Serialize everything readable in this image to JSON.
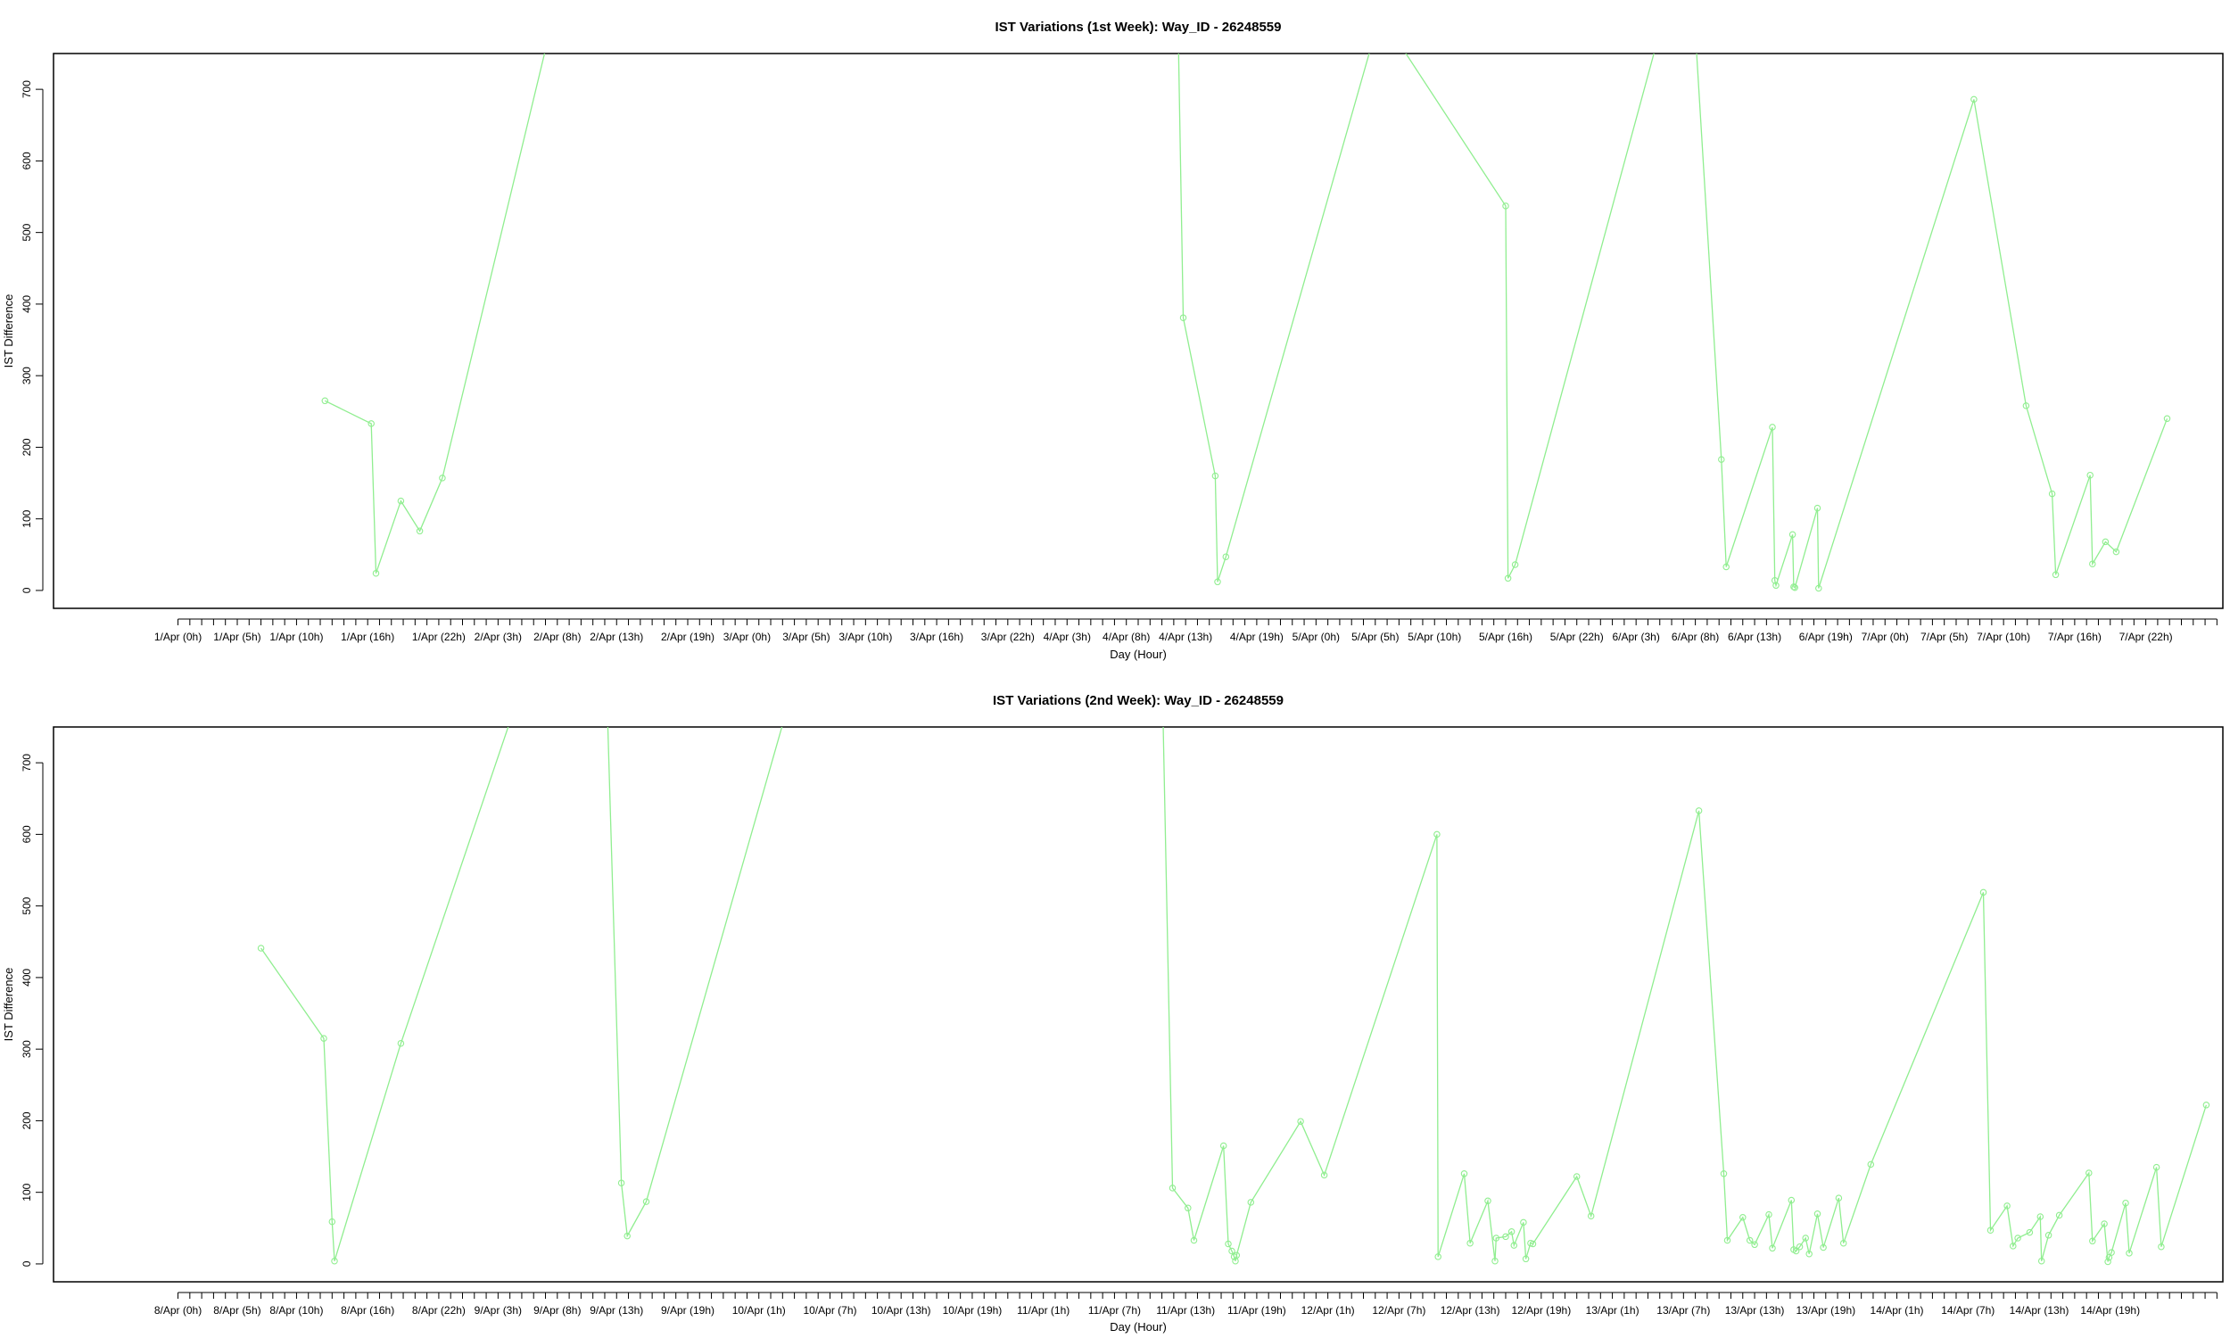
{
  "colors": {
    "series": "#90ee90",
    "frame": "#000000",
    "background": "#ffffff"
  },
  "chart_data": [
    {
      "type": "line",
      "title": "IST Variations (1st Week): Way_ID - 26248559",
      "xlabel": "Day (Hour)",
      "ylabel": "IST Difference",
      "ylim": [
        -25,
        750
      ],
      "yticks": [
        0,
        100,
        200,
        300,
        400,
        500,
        600,
        700
      ],
      "xlim": [
        -10.5,
        172.5
      ],
      "x_unit": "hours since 1/Apr 0h",
      "x_minor_step": 1,
      "tick_labels": [
        {
          "x": 0,
          "label": "1/Apr (0h)"
        },
        {
          "x": 5,
          "label": "1/Apr (5h)"
        },
        {
          "x": 10,
          "label": "1/Apr (10h)"
        },
        {
          "x": 16,
          "label": "1/Apr (16h)"
        },
        {
          "x": 22,
          "label": "1/Apr (22h)"
        },
        {
          "x": 27,
          "label": "2/Apr (3h)"
        },
        {
          "x": 32,
          "label": "2/Apr (8h)"
        },
        {
          "x": 37,
          "label": "2/Apr (13h)"
        },
        {
          "x": 43,
          "label": "2/Apr (19h)"
        },
        {
          "x": 48,
          "label": "3/Apr (0h)"
        },
        {
          "x": 53,
          "label": "3/Apr (5h)"
        },
        {
          "x": 58,
          "label": "3/Apr (10h)"
        },
        {
          "x": 64,
          "label": "3/Apr (16h)"
        },
        {
          "x": 70,
          "label": "3/Apr (22h)"
        },
        {
          "x": 75,
          "label": "4/Apr (3h)"
        },
        {
          "x": 80,
          "label": "4/Apr (8h)"
        },
        {
          "x": 85,
          "label": "4/Apr (13h)"
        },
        {
          "x": 91,
          "label": "4/Apr (19h)"
        },
        {
          "x": 96,
          "label": "5/Apr (0h)"
        },
        {
          "x": 101,
          "label": "5/Apr (5h)"
        },
        {
          "x": 106,
          "label": "5/Apr (10h)"
        },
        {
          "x": 112,
          "label": "5/Apr (16h)"
        },
        {
          "x": 118,
          "label": "5/Apr (22h)"
        },
        {
          "x": 123,
          "label": "6/Apr (3h)"
        },
        {
          "x": 128,
          "label": "6/Apr (8h)"
        },
        {
          "x": 133,
          "label": "6/Apr (13h)"
        },
        {
          "x": 139,
          "label": "6/Apr (19h)"
        },
        {
          "x": 144,
          "label": "7/Apr (0h)"
        },
        {
          "x": 149,
          "label": "7/Apr (5h)"
        },
        {
          "x": 154,
          "label": "7/Apr (10h)"
        },
        {
          "x": 160,
          "label": "7/Apr (16h)"
        },
        {
          "x": 166,
          "label": "7/Apr (22h)"
        }
      ],
      "series": [
        {
          "points": [
            [
              12.4,
              265
            ],
            [
              16.3,
              233
            ],
            [
              16.7,
              24
            ],
            [
              18.8,
              125
            ],
            [
              20.4,
              83
            ],
            [
              22.3,
              157
            ],
            [
              32.3,
              845
            ],
            [
              84.3,
              850
            ],
            [
              84.8,
              381
            ],
            [
              87.5,
              160
            ],
            [
              87.7,
              12
            ],
            [
              88.4,
              47
            ],
            [
              101.0,
              780
            ],
            [
              102.0,
              790
            ],
            [
              112.0,
              537
            ],
            [
              112.2,
              17
            ],
            [
              112.8,
              36
            ],
            [
              125.0,
              780
            ],
            [
              128.0,
              780
            ],
            [
              130.2,
              183
            ],
            [
              130.6,
              33
            ],
            [
              134.5,
              228
            ],
            [
              134.7,
              14
            ],
            [
              134.8,
              7
            ],
            [
              136.2,
              78
            ],
            [
              136.3,
              5
            ],
            [
              136.4,
              4
            ],
            [
              138.3,
              115
            ],
            [
              138.4,
              3
            ],
            [
              151.5,
              686
            ],
            [
              155.9,
              258
            ],
            [
              158.1,
              135
            ],
            [
              158.4,
              22
            ],
            [
              161.3,
              161
            ],
            [
              161.5,
              37
            ],
            [
              162.6,
              68
            ],
            [
              163.5,
              54
            ],
            [
              167.8,
              240
            ]
          ]
        }
      ]
    },
    {
      "type": "line",
      "title": "IST Variations (2nd Week): Way_ID - 26248559",
      "xlabel": "Day (Hour)",
      "ylabel": "IST Difference",
      "ylim": [
        -25,
        750
      ],
      "yticks": [
        0,
        100,
        200,
        300,
        400,
        500,
        600,
        700
      ],
      "xlim": [
        -10.5,
        172.5
      ],
      "x_unit": "hours since 8/Apr 0h",
      "x_minor_step": 1,
      "tick_labels": [
        {
          "x": 0,
          "label": "8/Apr (0h)"
        },
        {
          "x": 5,
          "label": "8/Apr (5h)"
        },
        {
          "x": 10,
          "label": "8/Apr (10h)"
        },
        {
          "x": 16,
          "label": "8/Apr (16h)"
        },
        {
          "x": 22,
          "label": "8/Apr (22h)"
        },
        {
          "x": 27,
          "label": "9/Apr (3h)"
        },
        {
          "x": 32,
          "label": "9/Apr (8h)"
        },
        {
          "x": 37,
          "label": "9/Apr (13h)"
        },
        {
          "x": 43,
          "label": "9/Apr (19h)"
        },
        {
          "x": 49,
          "label": "10/Apr (1h)"
        },
        {
          "x": 55,
          "label": "10/Apr (7h)"
        },
        {
          "x": 61,
          "label": "10/Apr (13h)"
        },
        {
          "x": 67,
          "label": "10/Apr (19h)"
        },
        {
          "x": 73,
          "label": "11/Apr (1h)"
        },
        {
          "x": 79,
          "label": "11/Apr (7h)"
        },
        {
          "x": 85,
          "label": "11/Apr (13h)"
        },
        {
          "x": 91,
          "label": "11/Apr (19h)"
        },
        {
          "x": 97,
          "label": "12/Apr (1h)"
        },
        {
          "x": 103,
          "label": "12/Apr (7h)"
        },
        {
          "x": 109,
          "label": "12/Apr (13h)"
        },
        {
          "x": 115,
          "label": "12/Apr (19h)"
        },
        {
          "x": 121,
          "label": "13/Apr (1h)"
        },
        {
          "x": 127,
          "label": "13/Apr (7h)"
        },
        {
          "x": 133,
          "label": "13/Apr (13h)"
        },
        {
          "x": 139,
          "label": "13/Apr (19h)"
        },
        {
          "x": 145,
          "label": "14/Apr (1h)"
        },
        {
          "x": 151,
          "label": "14/Apr (7h)"
        },
        {
          "x": 157,
          "label": "14/Apr (13h)"
        },
        {
          "x": 163,
          "label": "14/Apr (19h)"
        }
      ],
      "series": [
        {
          "points": [
            [
              7.0,
              441
            ],
            [
              12.3,
              315
            ],
            [
              13.0,
              59
            ],
            [
              13.2,
              4
            ],
            [
              18.8,
              308
            ],
            [
              29.7,
              840
            ],
            [
              36.1,
              840
            ],
            [
              37.4,
              113
            ],
            [
              37.9,
              39
            ],
            [
              39.5,
              87
            ],
            [
              52.5,
              840
            ],
            [
              83.0,
              840
            ],
            [
              83.9,
              106
            ],
            [
              85.2,
              78
            ],
            [
              85.7,
              33
            ],
            [
              88.2,
              165
            ],
            [
              88.6,
              28
            ],
            [
              88.9,
              18
            ],
            [
              89.1,
              10
            ],
            [
              89.2,
              4
            ],
            [
              89.3,
              12
            ],
            [
              90.5,
              86
            ],
            [
              94.7,
              199
            ],
            [
              96.7,
              124
            ],
            [
              106.2,
              600
            ],
            [
              106.3,
              10
            ],
            [
              108.5,
              126
            ],
            [
              109.0,
              29
            ],
            [
              110.5,
              88
            ],
            [
              111.1,
              4
            ],
            [
              111.2,
              36
            ],
            [
              112.0,
              38
            ],
            [
              112.5,
              45
            ],
            [
              112.7,
              26
            ],
            [
              113.5,
              58
            ],
            [
              113.7,
              7
            ],
            [
              114.1,
              29
            ],
            [
              114.3,
              28
            ],
            [
              118.0,
              122
            ],
            [
              119.2,
              67
            ],
            [
              128.3,
              633
            ],
            [
              130.4,
              126
            ],
            [
              130.7,
              33
            ],
            [
              132.0,
              65
            ],
            [
              132.6,
              33
            ],
            [
              133.0,
              27
            ],
            [
              134.2,
              69
            ],
            [
              134.5,
              22
            ],
            [
              136.1,
              89
            ],
            [
              136.3,
              20
            ],
            [
              136.5,
              18
            ],
            [
              136.8,
              24
            ],
            [
              137.3,
              36
            ],
            [
              137.6,
              14
            ],
            [
              138.3,
              70
            ],
            [
              138.8,
              23
            ],
            [
              140.1,
              92
            ],
            [
              140.5,
              29
            ],
            [
              142.8,
              139
            ],
            [
              152.3,
              519
            ],
            [
              152.9,
              47
            ],
            [
              154.3,
              81
            ],
            [
              154.8,
              25
            ],
            [
              155.2,
              36
            ],
            [
              156.2,
              44
            ],
            [
              157.1,
              66
            ],
            [
              157.2,
              4
            ],
            [
              157.8,
              40
            ],
            [
              158.7,
              68
            ],
            [
              161.2,
              127
            ],
            [
              161.5,
              32
            ],
            [
              162.5,
              56
            ],
            [
              162.8,
              3
            ],
            [
              162.9,
              9
            ],
            [
              163.1,
              16
            ],
            [
              164.3,
              85
            ],
            [
              164.6,
              15
            ],
            [
              166.9,
              135
            ],
            [
              167.3,
              24
            ],
            [
              171.1,
              222
            ]
          ]
        }
      ]
    }
  ]
}
